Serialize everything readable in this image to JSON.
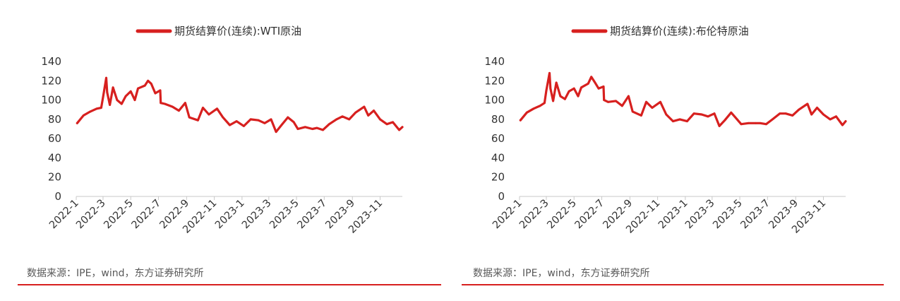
{
  "chart_data": [
    {
      "type": "line",
      "series": [
        {
          "name": "期货结算价(连续):WTI原油",
          "color": "#d7201f",
          "x": [
            "2022-01-03",
            "2022-01-17",
            "2022-02-01",
            "2022-02-15",
            "2022-02-25",
            "2022-03-01",
            "2022-03-08",
            "2022-03-10",
            "2022-03-16",
            "2022-03-23",
            "2022-04-01",
            "2022-04-11",
            "2022-04-20",
            "2022-05-01",
            "2022-05-10",
            "2022-05-17",
            "2022-06-01",
            "2022-06-08",
            "2022-06-15",
            "2022-06-24",
            "2022-07-05",
            "2022-07-06",
            "2022-07-15",
            "2022-08-01",
            "2022-08-15",
            "2022-08-29",
            "2022-09-07",
            "2022-09-26",
            "2022-10-07",
            "2022-10-20",
            "2022-11-07",
            "2022-11-20",
            "2022-12-05",
            "2022-12-20",
            "2023-01-05",
            "2023-01-20",
            "2023-02-06",
            "2023-02-20",
            "2023-03-06",
            "2023-03-17",
            "2023-03-29",
            "2023-04-12",
            "2023-04-25",
            "2023-05-04",
            "2023-05-20",
            "2023-06-05",
            "2023-06-15",
            "2023-06-28",
            "2023-07-12",
            "2023-07-28",
            "2023-08-10",
            "2023-08-25",
            "2023-09-08",
            "2023-09-27",
            "2023-10-06",
            "2023-10-18",
            "2023-11-01",
            "2023-11-16",
            "2023-11-29",
            "2023-12-13",
            "2023-12-20"
          ],
          "y": [
            76,
            84,
            88,
            91,
            92,
            103,
            123,
            108,
            95,
            113,
            100,
            96,
            104,
            109,
            100,
            112,
            115,
            120,
            117,
            107,
            110,
            97,
            96,
            93,
            89,
            97,
            82,
            79,
            92,
            85,
            91,
            82,
            74,
            78,
            73,
            80,
            79,
            76,
            80,
            67,
            74,
            82,
            77,
            70,
            72,
            70,
            71,
            69,
            75,
            80,
            83,
            80,
            87,
            93,
            84,
            89,
            80,
            75,
            77,
            69,
            72
          ]
        }
      ],
      "ylim": [
        0,
        140
      ],
      "y_ticks": [
        0,
        20,
        40,
        60,
        80,
        100,
        120,
        140
      ],
      "x_tick_labels": [
        "2022-1",
        "2022-3",
        "2022-5",
        "2022-7",
        "2022-9",
        "2022-11",
        "2023-1",
        "2023-3",
        "2023-5",
        "2023-7",
        "2023-9",
        "2023-11"
      ],
      "legend_position": "top-center",
      "grid": false
    },
    {
      "type": "line",
      "series": [
        {
          "name": "期货结算价(连续):布伦特原油",
          "color": "#d7201f",
          "x": [
            "2022-01-03",
            "2022-01-17",
            "2022-02-01",
            "2022-02-15",
            "2022-02-25",
            "2022-03-01",
            "2022-03-08",
            "2022-03-10",
            "2022-03-16",
            "2022-03-23",
            "2022-04-01",
            "2022-04-11",
            "2022-04-20",
            "2022-05-01",
            "2022-05-10",
            "2022-05-17",
            "2022-06-01",
            "2022-06-08",
            "2022-06-15",
            "2022-06-24",
            "2022-07-05",
            "2022-07-06",
            "2022-07-15",
            "2022-08-01",
            "2022-08-15",
            "2022-08-29",
            "2022-09-07",
            "2022-09-26",
            "2022-10-07",
            "2022-10-20",
            "2022-11-07",
            "2022-11-20",
            "2022-12-05",
            "2022-12-20",
            "2023-01-05",
            "2023-01-20",
            "2023-02-06",
            "2023-02-20",
            "2023-03-06",
            "2023-03-17",
            "2023-03-29",
            "2023-04-12",
            "2023-04-25",
            "2023-05-04",
            "2023-05-20",
            "2023-06-05",
            "2023-06-15",
            "2023-06-28",
            "2023-07-12",
            "2023-07-28",
            "2023-08-10",
            "2023-08-25",
            "2023-09-08",
            "2023-09-27",
            "2023-10-06",
            "2023-10-18",
            "2023-11-01",
            "2023-11-16",
            "2023-11-29",
            "2023-12-13",
            "2023-12-20"
          ],
          "y": [
            79,
            87,
            91,
            94,
            97,
            110,
            128,
            112,
            99,
            118,
            104,
            101,
            109,
            112,
            104,
            113,
            117,
            124,
            119,
            112,
            114,
            100,
            98,
            99,
            94,
            104,
            88,
            84,
            98,
            92,
            98,
            85,
            78,
            80,
            78,
            86,
            85,
            83,
            86,
            73,
            79,
            87,
            80,
            75,
            76,
            76,
            76,
            75,
            80,
            86,
            86,
            84,
            90,
            96,
            85,
            92,
            85,
            80,
            83,
            74,
            78
          ]
        }
      ],
      "ylim": [
        0,
        140
      ],
      "y_ticks": [
        0,
        20,
        40,
        60,
        80,
        100,
        120,
        140
      ],
      "x_tick_labels": [
        "2022-1",
        "2022-3",
        "2022-5",
        "2022-7",
        "2022-9",
        "2022-11",
        "2023-1",
        "2023-3",
        "2023-5",
        "2023-7",
        "2023-9",
        "2023-11"
      ],
      "legend_position": "top-center",
      "grid": false
    }
  ],
  "panels": [
    {
      "source": "数据来源：IPE，wind，东方证券研究所"
    },
    {
      "source": "数据来源：IPE，wind，东方证券研究所"
    }
  ]
}
